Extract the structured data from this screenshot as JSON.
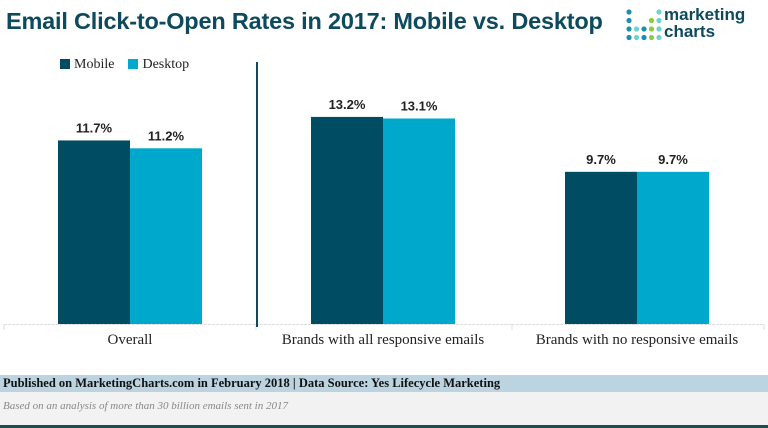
{
  "header": {
    "title": "Email Click-to-Open Rates in 2017: Mobile vs. Desktop",
    "logo": "marketing charts"
  },
  "logo_lines": [
    "marketing",
    "charts"
  ],
  "chart_data": {
    "type": "bar",
    "title": "Email Click-to-Open Rates in 2017: Mobile vs. Desktop",
    "categories": [
      "Overall",
      "Brands with all responsive emails",
      "Brands with no responsive emails"
    ],
    "series": [
      {
        "name": "Mobile",
        "values": [
          11.7,
          13.2,
          9.7
        ],
        "labels": [
          "11.7%",
          "13.2%",
          "9.7%"
        ],
        "color": "#004d63"
      },
      {
        "name": "Desktop",
        "values": [
          11.2,
          13.1,
          9.7
        ],
        "labels": [
          "11.2%",
          "13.1%",
          "9.7%"
        ],
        "color": "#00a9cc"
      }
    ],
    "ylim": [
      0,
      16.7
    ],
    "grid": false,
    "legend": "top-left",
    "unit": "%"
  },
  "footer": {
    "published": "Published on MarketingCharts.com in February 2018 | Data Source: Yes Lifecycle Marketing",
    "note": "Based on an analysis of more than 30 billion emails sent in 2017"
  }
}
